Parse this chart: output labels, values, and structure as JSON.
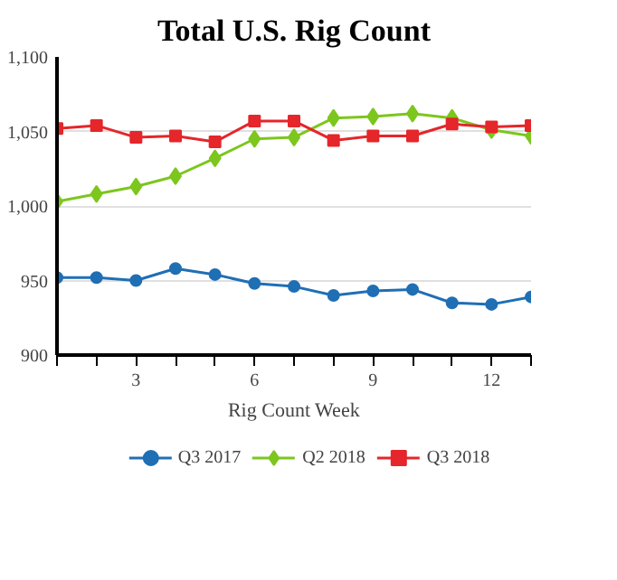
{
  "chart_data": {
    "type": "line",
    "title": "Total U.S. Rig Count",
    "xlabel": "Rig Count Week",
    "x": [
      1,
      2,
      3,
      4,
      5,
      6,
      7,
      8,
      9,
      10,
      11,
      12,
      13
    ],
    "xlim": [
      1,
      13
    ],
    "xticks": [
      {
        "value": 1,
        "label": null
      },
      {
        "value": 2,
        "label": null
      },
      3,
      {
        "value": 4,
        "label": null
      },
      {
        "value": 5,
        "label": null
      },
      6,
      {
        "value": 7,
        "label": null
      },
      {
        "value": 8,
        "label": null
      },
      9,
      {
        "value": 10,
        "label": null
      },
      {
        "value": 11,
        "label": null
      },
      12,
      {
        "value": 13,
        "label": null
      }
    ],
    "ylim": [
      900,
      1100
    ],
    "yticks": [
      {
        "value": 900,
        "label": "900"
      },
      {
        "value": 950,
        "label": "950"
      },
      {
        "value": 1000,
        "label": "1,000"
      },
      {
        "value": 1050,
        "label": "1,050"
      },
      {
        "value": 1100,
        "label": "1,100"
      }
    ],
    "grid": "y",
    "legend": "bottom",
    "series": [
      {
        "name": "Q3 2017",
        "color": "#1f6fb5",
        "marker": "circle",
        "values": [
          952,
          952,
          950,
          958,
          954,
          948,
          946,
          940,
          943,
          944,
          935,
          934,
          939
        ]
      },
      {
        "name": "Q2 2018",
        "color": "#7dc61e",
        "marker": "diamond",
        "values": [
          1003,
          1008,
          1013,
          1020,
          1032,
          1045,
          1046,
          1059,
          1060,
          1062,
          1059,
          1051,
          1047
        ]
      },
      {
        "name": "Q3 2018",
        "color": "#e5262a",
        "marker": "square",
        "values": [
          1052,
          1054,
          1046,
          1047,
          1043,
          1057,
          1057,
          1044,
          1047,
          1047,
          1055,
          1053,
          1054
        ]
      }
    ]
  }
}
